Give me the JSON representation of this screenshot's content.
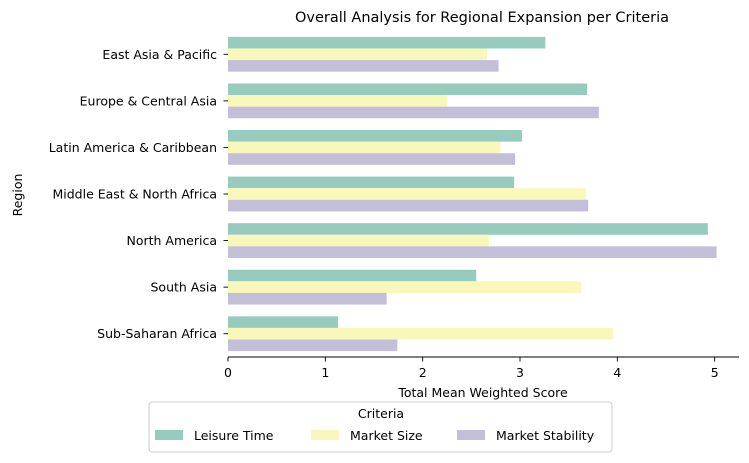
{
  "chart_data": {
    "type": "bar",
    "orientation": "horizontal",
    "title": "Overall Analysis for Regional Expansion per Criteria",
    "xlabel": "Total Mean Weighted Score",
    "ylabel": "Region",
    "xlim": [
      0,
      5.25
    ],
    "xticks": [
      "0",
      "1",
      "2",
      "3",
      "4",
      "5"
    ],
    "grid": false,
    "legend_position": "bottom-center",
    "legend_title": "Criteria",
    "categories": [
      "East Asia & Pacific",
      "Europe & Central Asia",
      "Latin America & Caribbean",
      "Middle East & North Africa",
      "North America",
      "South Asia",
      "Sub-Saharan Africa"
    ],
    "series": [
      {
        "name": "Leisure Time",
        "color": "#96cbbe",
        "values": [
          3.26,
          3.69,
          3.02,
          2.94,
          4.93,
          2.55,
          1.13
        ]
      },
      {
        "name": "Market Size",
        "color": "#f8f8bb",
        "values": [
          2.66,
          2.25,
          2.8,
          3.68,
          2.68,
          3.63,
          3.96
        ]
      },
      {
        "name": "Market Stability",
        "color": "#c3bfd8",
        "values": [
          2.78,
          3.81,
          2.95,
          3.7,
          5.02,
          1.63,
          1.74
        ]
      }
    ]
  }
}
